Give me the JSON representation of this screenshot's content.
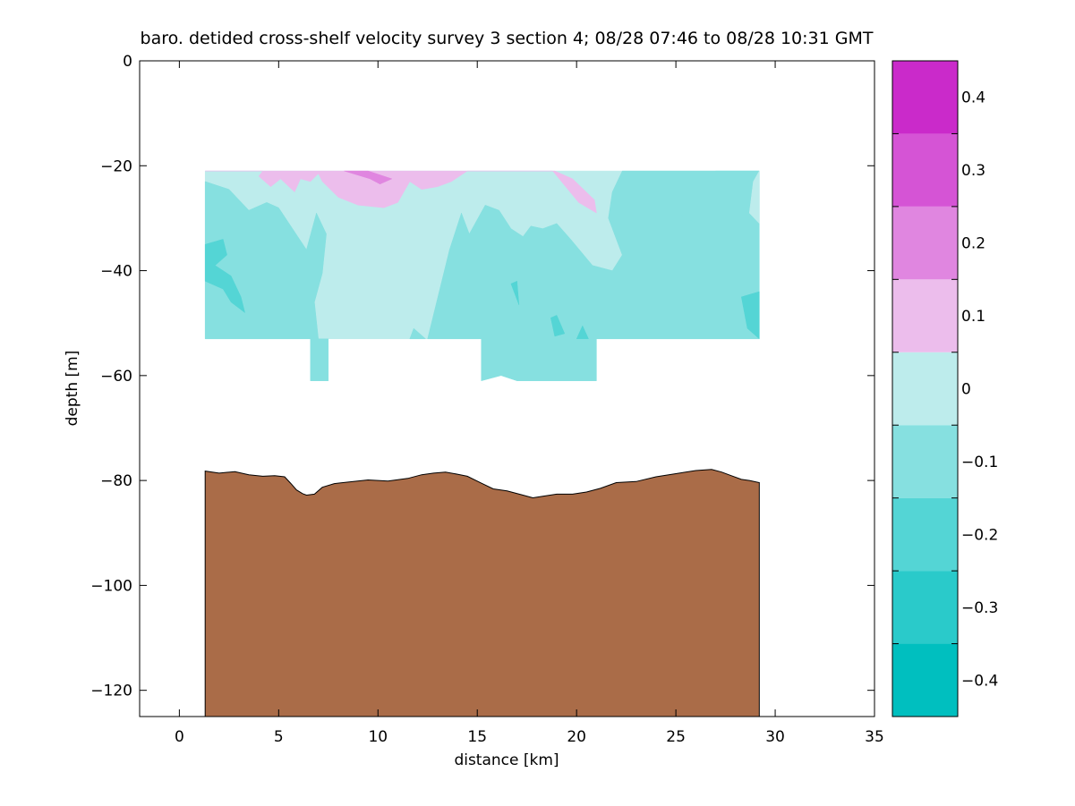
{
  "chart_data": [
    {
      "type": "heatmap",
      "title": "baro. detided cross-shelf velocity survey 3 section 4; 08/28 07:46 to 08/28 10:31 GMT",
      "xlabel": "distance [km]",
      "ylabel": "depth [m]",
      "xlim": [
        -2,
        35
      ],
      "ylim": [
        -125,
        0
      ],
      "xticks": [
        0,
        5,
        10,
        15,
        20,
        25,
        30,
        35
      ],
      "yticks": [
        0,
        -20,
        -40,
        -60,
        -80,
        -100,
        -120
      ],
      "data_extent": {
        "x": [
          1.3,
          29.2
        ],
        "depth_top": -21,
        "depth_bottom": -53
      },
      "deep_bins": [
        {
          "x": [
            6.6,
            7.5
          ],
          "depth_bottom": -61
        },
        {
          "x": [
            15.2,
            21.0
          ],
          "depth_bottom": -61
        }
      ],
      "velocity_regions": [
        {
          "level": 0.05,
          "polygon": [
            [
              1.3,
              -21
            ],
            [
              29.2,
              -21
            ],
            [
              29.2,
              -53
            ],
            [
              1.3,
              -53
            ]
          ]
        },
        {
          "level": -0.05,
          "polygon": [
            [
              1.3,
              -23
            ],
            [
              2.5,
              -24.5
            ],
            [
              3.5,
              -28.5
            ],
            [
              4.4,
              -27
            ],
            [
              5,
              -28
            ],
            [
              6.4,
              -36
            ],
            [
              6.9,
              -29
            ],
            [
              7.4,
              -33
            ],
            [
              7.2,
              -40.5
            ],
            [
              6.8,
              -46
            ],
            [
              7.0,
              -53
            ],
            [
              1.3,
              -53
            ]
          ]
        },
        {
          "level": -0.05,
          "polygon": [
            [
              12.5,
              -53
            ],
            [
              13.6,
              -36
            ],
            [
              14.2,
              -29
            ],
            [
              14.6,
              -33
            ],
            [
              15.4,
              -27.5
            ],
            [
              16.1,
              -28.5
            ],
            [
              16.7,
              -32
            ],
            [
              17.3,
              -33.5
            ],
            [
              17.7,
              -31.5
            ],
            [
              18.3,
              -32
            ],
            [
              19.0,
              -31
            ],
            [
              19.7,
              -34
            ],
            [
              20.8,
              -39
            ],
            [
              21.8,
              -40
            ],
            [
              22.3,
              -37
            ],
            [
              21.6,
              -30
            ],
            [
              21.8,
              -25
            ],
            [
              22.3,
              -21
            ],
            [
              23.4,
              -21
            ],
            [
              24,
              -27
            ],
            [
              25.1,
              -29
            ],
            [
              26.0,
              -31
            ],
            [
              26.3,
              -28
            ],
            [
              27.0,
              -21
            ],
            [
              29.2,
              -21
            ],
            [
              29.2,
              -31
            ],
            [
              28.3,
              -42
            ],
            [
              27.3,
              -44
            ],
            [
              26.9,
              -40
            ],
            [
              26.6,
              -38
            ],
            [
              26.2,
              -35
            ],
            [
              26.0,
              -31
            ],
            [
              25.1,
              -29
            ],
            [
              24,
              -27
            ],
            [
              23.4,
              -21
            ],
            [
              29.2,
              -21
            ],
            [
              29.2,
              -53
            ]
          ]
        },
        {
          "level": -0.05,
          "polygon": [
            [
              11.6,
              -53
            ],
            [
              11.8,
              -51
            ],
            [
              12.4,
              -53
            ]
          ]
        },
        {
          "level": -0.05,
          "polygon": [
            [
              6.6,
              -53
            ],
            [
              7.5,
              -53
            ],
            [
              7.5,
              -61
            ],
            [
              6.6,
              -61
            ]
          ]
        },
        {
          "level": -0.05,
          "polygon": [
            [
              15.2,
              -53
            ],
            [
              21.0,
              -53
            ],
            [
              21.0,
              -61
            ],
            [
              17.0,
              -61
            ],
            [
              16.2,
              -60
            ],
            [
              15.2,
              -61
            ]
          ]
        },
        {
          "level": 0.05,
          "polygon": [
            [
              29.2,
              -21
            ],
            [
              29.2,
              -31
            ],
            [
              28.7,
              -29
            ],
            [
              28.9,
              -23
            ]
          ]
        },
        {
          "level": -0.15,
          "polygon": [
            [
              1.3,
              -35
            ],
            [
              2.2,
              -34
            ],
            [
              2.4,
              -37
            ],
            [
              1.8,
              -39
            ],
            [
              2.6,
              -41
            ],
            [
              3.1,
              -45
            ],
            [
              3.3,
              -48
            ],
            [
              2.6,
              -46
            ],
            [
              2.2,
              -43.5
            ],
            [
              1.3,
              -42
            ]
          ]
        },
        {
          "level": -0.15,
          "polygon": [
            [
              28.3,
              -45
            ],
            [
              29.2,
              -44
            ],
            [
              29.2,
              -53
            ],
            [
              28.6,
              -51
            ]
          ]
        },
        {
          "level": -0.15,
          "polygon": [
            [
              18.7,
              -49
            ],
            [
              19.0,
              -48.5
            ],
            [
              19.4,
              -52
            ],
            [
              18.9,
              -52.5
            ]
          ]
        },
        {
          "level": -0.15,
          "polygon": [
            [
              20.0,
              -53
            ],
            [
              20.3,
              -50.5
            ],
            [
              20.6,
              -53
            ]
          ]
        },
        {
          "level": -0.15,
          "polygon": [
            [
              16.7,
              -42.5
            ],
            [
              17.0,
              -42
            ],
            [
              17.1,
              -46.5
            ]
          ]
        },
        {
          "level": 0.15,
          "polygon": [
            [
              1.3,
              -21
            ],
            [
              4.2,
              -21
            ],
            [
              4.0,
              -22
            ],
            [
              4.6,
              -24
            ],
            [
              5.1,
              -22.5
            ],
            [
              5.8,
              -25
            ],
            [
              6.1,
              -22.5
            ],
            [
              6.6,
              -23
            ],
            [
              7.0,
              -21.5
            ],
            [
              7.2,
              -23
            ],
            [
              8,
              -26
            ],
            [
              9,
              -27.5
            ],
            [
              10.3,
              -28
            ],
            [
              11.0,
              -27
            ],
            [
              11.6,
              -23
            ],
            [
              12.2,
              -24.5
            ],
            [
              13.0,
              -24
            ],
            [
              13.7,
              -23
            ],
            [
              14.5,
              -21
            ],
            [
              18.9,
              -21
            ],
            [
              19.8,
              -22.5
            ],
            [
              20.9,
              -26.5
            ],
            [
              21.0,
              -29
            ],
            [
              20.1,
              -27
            ],
            [
              18.8,
              -21
            ]
          ]
        },
        {
          "level": 0.25,
          "polygon": [
            [
              8.3,
              -21
            ],
            [
              9.5,
              -21
            ],
            [
              10.7,
              -22.5
            ],
            [
              10.1,
              -23.5
            ],
            [
              9.6,
              -22.5
            ]
          ]
        }
      ],
      "bathymetry": {
        "x": [
          1.3,
          2.0,
          2.8,
          3.5,
          4.2,
          4.8,
          5.3,
          5.6,
          5.9,
          6.2,
          6.4,
          6.8,
          7.2,
          7.8,
          8.5,
          9.5,
          10.5,
          11.5,
          12.2,
          12.8,
          13.4,
          14.0,
          14.5,
          15.2,
          15.8,
          16.5,
          17.3,
          17.8,
          18.3,
          19.0,
          19.8,
          20.5,
          21.2,
          22.0,
          23.0,
          24.0,
          25.0,
          26.0,
          26.8,
          27.3,
          27.8,
          28.3,
          28.7,
          29.2
        ],
        "depth": [
          -78.2,
          -78.6,
          -78.3,
          -78.9,
          -79.2,
          -79.1,
          -79.3,
          -80.5,
          -81.8,
          -82.5,
          -82.8,
          -82.6,
          -81.3,
          -80.6,
          -80.3,
          -79.9,
          -80.1,
          -79.6,
          -78.9,
          -78.6,
          -78.4,
          -78.8,
          -79.2,
          -80.5,
          -81.6,
          -82.0,
          -82.8,
          -83.3,
          -83.0,
          -82.6,
          -82.6,
          -82.2,
          -81.5,
          -80.4,
          -80.2,
          -79.3,
          -78.7,
          -78.1,
          -77.9,
          -78.4,
          -79.1,
          -79.8,
          -80.0,
          -80.4
        ]
      },
      "colorbar": {
        "levels": [
          -0.45,
          -0.35,
          -0.25,
          -0.15,
          -0.05,
          0.05,
          0.15,
          0.25,
          0.35,
          0.45
        ],
        "colors": [
          "#00bfbf",
          "#2acaca",
          "#54d5d5",
          "#86e0e0",
          "#bdecec",
          "#ecbdec",
          "#e086e0",
          "#d554d5",
          "#ca2aca",
          "#bf00bf"
        ],
        "ticks": [
          0.4,
          0.3,
          0.2,
          0.1,
          0,
          -0.1,
          -0.2,
          -0.3,
          -0.4
        ]
      },
      "colors": {
        "seafloor": "#aa6c48",
        "axes": "#000000",
        "background": "#ffffff"
      }
    }
  ]
}
